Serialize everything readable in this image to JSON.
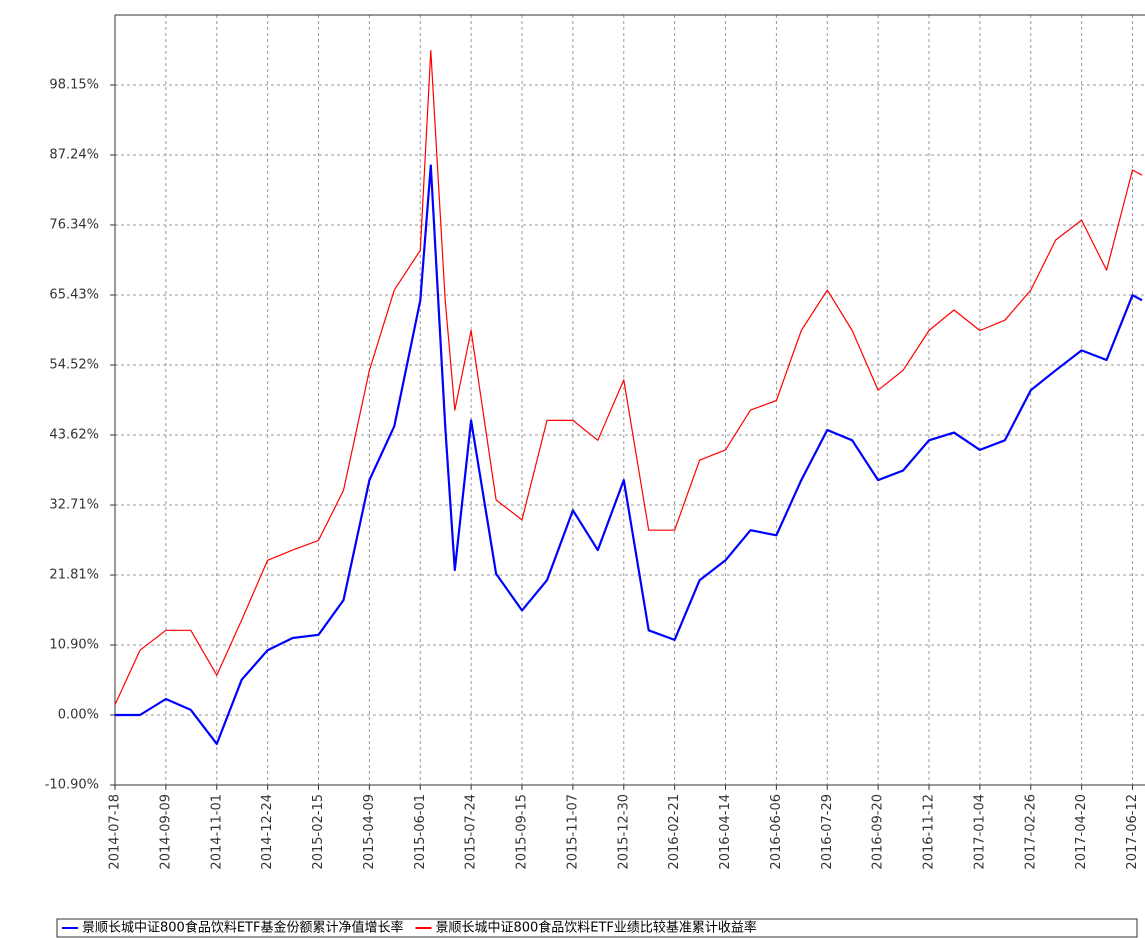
{
  "chart_data": {
    "type": "line",
    "x": [
      "2014-07-18",
      "2014-08-13",
      "2014-09-09",
      "2014-10-05",
      "2014-11-01",
      "2014-11-27",
      "2014-12-24",
      "2015-01-19",
      "2015-02-15",
      "2015-03-13",
      "2015-04-09",
      "2015-05-05",
      "2015-06-01",
      "2015-06-12",
      "2015-06-27",
      "2015-07-07",
      "2015-07-24",
      "2015-08-19",
      "2015-09-15",
      "2015-10-11",
      "2015-11-07",
      "2015-12-03",
      "2015-12-30",
      "2016-01-25",
      "2016-02-21",
      "2016-03-18",
      "2016-04-14",
      "2016-05-10",
      "2016-06-06",
      "2016-07-02",
      "2016-07-29",
      "2016-08-24",
      "2016-09-20",
      "2016-10-16",
      "2016-11-12",
      "2016-12-08",
      "2017-01-04",
      "2017-01-30",
      "2017-02-26",
      "2017-03-24",
      "2017-04-20",
      "2017-05-16",
      "2017-06-12",
      "2017-06-22"
    ],
    "series": [
      {
        "name": "景顺长城中证800食品饮料ETF基金份额累计净值增长率",
        "color": "#0000ff",
        "values": [
          0,
          0,
          2.5,
          0.8,
          -4.5,
          5.5,
          10.1,
          12,
          12.5,
          17.9,
          36.6,
          45,
          64.6,
          85.6,
          45,
          22.6,
          45.9,
          22,
          16.3,
          21,
          31.9,
          25.7,
          36.6,
          13.2,
          11.7,
          21,
          24.1,
          28.8,
          28,
          36.6,
          44.4,
          42.8,
          36.6,
          38.1,
          42.8,
          44,
          41.3,
          42.8,
          50.6,
          53.7,
          56.8,
          55.3,
          65.4,
          64.6
        ]
      },
      {
        "name": "景顺长城中证800食品饮料ETF业绩比较基准累计收益率",
        "color": "#ff0000",
        "values": [
          1.6,
          10.1,
          13.2,
          13.2,
          6.2,
          14.8,
          24.1,
          25.7,
          27.2,
          35,
          53.7,
          66.2,
          72.4,
          103.5,
          64.6,
          47.5,
          59.9,
          33.5,
          30.4,
          45.9,
          45.9,
          42.8,
          52.2,
          28.8,
          28.8,
          39.7,
          41.3,
          47.5,
          49,
          59.9,
          66.2,
          59.9,
          50.6,
          53.7,
          59.9,
          63.1,
          59.9,
          61.5,
          66.2,
          74,
          77.1,
          69.3,
          84.9,
          84.1
        ]
      }
    ],
    "xlim": [
      "2014-07-18",
      "2017-06-25"
    ],
    "xticks": [
      "2014-07-18",
      "2014-09-09",
      "2014-11-01",
      "2014-12-24",
      "2015-02-15",
      "2015-04-09",
      "2015-06-01",
      "2015-07-24",
      "2015-09-15",
      "2015-11-07",
      "2015-12-30",
      "2016-02-21",
      "2016-04-14",
      "2016-06-06",
      "2016-07-29",
      "2016-09-20",
      "2016-11-12",
      "2017-01-04",
      "2017-02-26",
      "2017-04-20",
      "2017-06-12"
    ],
    "ylim": [
      -10.9,
      109.05
    ],
    "yticks": [
      {
        "value": -10.9,
        "label": "-10.90%"
      },
      {
        "value": 0,
        "label": "0.00%"
      },
      {
        "value": 10.9,
        "label": "10.90%"
      },
      {
        "value": 21.81,
        "label": "21.81%"
      },
      {
        "value": 32.71,
        "label": "32.71%"
      },
      {
        "value": 43.62,
        "label": "43.62%"
      },
      {
        "value": 54.52,
        "label": "54.52%"
      },
      {
        "value": 65.43,
        "label": "65.43%"
      },
      {
        "value": 76.34,
        "label": "76.34%"
      },
      {
        "value": 87.24,
        "label": "87.24%"
      },
      {
        "value": 98.15,
        "label": "98.15%"
      }
    ],
    "grid": true,
    "legend": "bottom"
  }
}
